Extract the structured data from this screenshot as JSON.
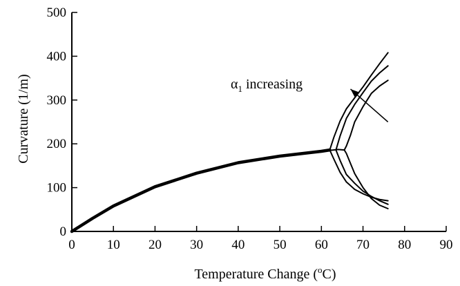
{
  "chart_data": {
    "type": "line",
    "xlabel": "Temperature Change (",
    "xlabel_sup": "o",
    "xlabel_unit": "C)",
    "ylabel": "Curvature (1/m)",
    "xlim": [
      0,
      90
    ],
    "ylim": [
      0,
      500
    ],
    "x_ticks": [
      "0",
      "10",
      "20",
      "30",
      "40",
      "50",
      "60",
      "70",
      "80",
      "90"
    ],
    "y_ticks": [
      "0",
      "100",
      "200",
      "300",
      "400",
      "500"
    ],
    "grid": false,
    "annotation": {
      "symbol": "α",
      "subscript": "1",
      "text": " increasing",
      "arrow_from": [
        76,
        250
      ],
      "arrow_to": [
        67,
        325
      ]
    },
    "series": [
      {
        "x": [
          0,
          5,
          10,
          20,
          30,
          40,
          50,
          60,
          62
        ],
        "y": [
          0,
          30,
          58,
          102,
          133,
          157,
          172,
          183,
          186
        ]
      },
      {
        "x": [
          62,
          63,
          64.5,
          66,
          68,
          70,
          72,
          74,
          76
        ],
        "y": [
          186,
          215,
          252,
          280,
          305,
          330,
          357,
          383,
          408
        ]
      },
      {
        "x": [
          62,
          63,
          64.5,
          66,
          68,
          70,
          72,
          74,
          76
        ],
        "y": [
          186,
          165,
          135,
          113,
          96,
          86,
          78,
          73,
          70
        ]
      },
      {
        "x": [
          60,
          62,
          64,
          65.5
        ],
        "y": [
          183,
          185,
          187,
          186
        ]
      },
      {
        "x": [
          63.5,
          64.5,
          66,
          68,
          70,
          72,
          74,
          76
        ],
        "y": [
          186,
          218,
          258,
          290,
          317,
          343,
          362,
          378
        ]
      },
      {
        "x": [
          63.5,
          64.5,
          66,
          68,
          70,
          72,
          74,
          76
        ],
        "y": [
          186,
          162,
          130,
          110,
          92,
          80,
          70,
          62
        ]
      },
      {
        "x": [
          65.5,
          66,
          67,
          68,
          70,
          72,
          74,
          76
        ],
        "y": [
          186,
          195,
          220,
          250,
          285,
          315,
          332,
          345
        ]
      },
      {
        "x": [
          65.5,
          66,
          67,
          68,
          70,
          72,
          74,
          76
        ],
        "y": [
          186,
          178,
          155,
          132,
          100,
          75,
          60,
          52
        ]
      }
    ]
  }
}
